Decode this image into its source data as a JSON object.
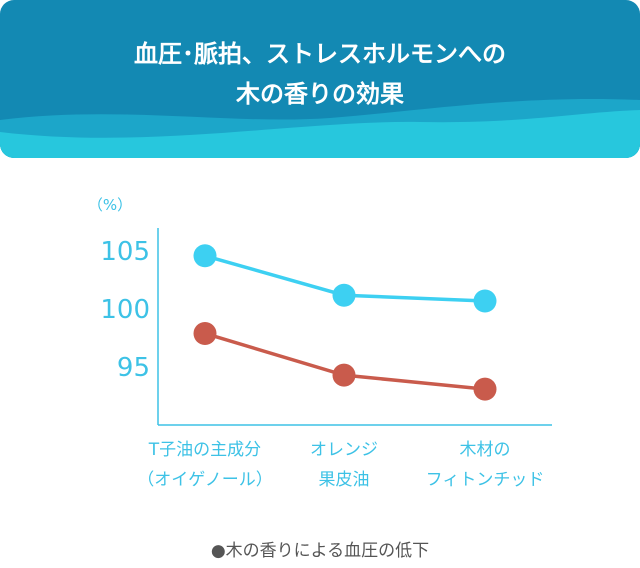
{
  "header": {
    "title_line1": "血圧･脈拍、ストレスホルモンへの",
    "title_line2": "木の香りの効果",
    "colors": {
      "top": "#1389b3",
      "wave": "#1ca6c9",
      "bottom": "#27c7dd"
    }
  },
  "chart_data": {
    "type": "line",
    "ylabel": "（%）",
    "ylim": [
      90,
      107
    ],
    "yticks": [
      95,
      100,
      105
    ],
    "categories": [
      [
        "T子油の主成分",
        "（オイゲノール）"
      ],
      [
        "オレンジ",
        "果皮油"
      ],
      [
        "木材の",
        "フィトンチッド"
      ]
    ],
    "series": [
      {
        "values": [
          104.6,
          101.2,
          100.7
        ],
        "color": "#3dd0f2"
      },
      {
        "values": [
          97.9,
          94.3,
          93.1
        ],
        "color": "#c95b4c"
      }
    ],
    "axis_color": "#3dc2e6",
    "label_color": "#3dc2e6"
  },
  "caption": {
    "bullet": "●",
    "text": "木の香りによる血圧の低下"
  }
}
